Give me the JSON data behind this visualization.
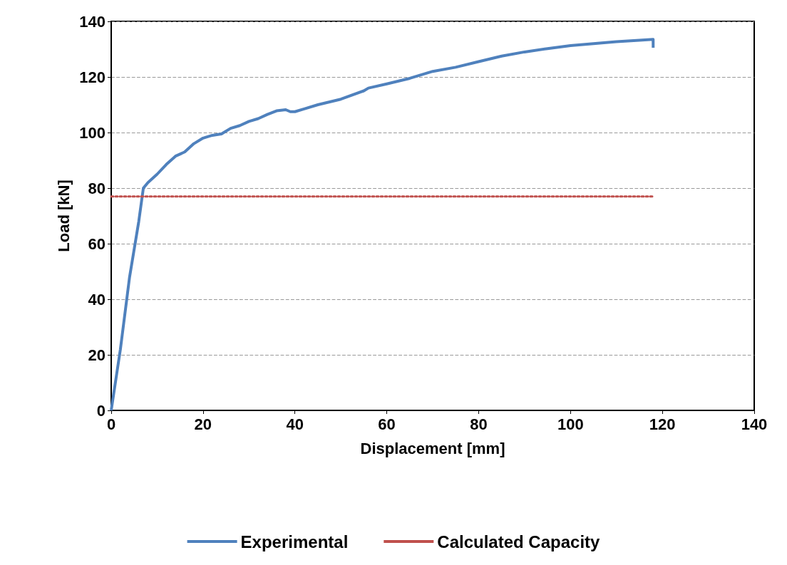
{
  "chart_data": {
    "type": "line",
    "xlabel": "Displacement [mm]",
    "ylabel": "Load [kN]",
    "xlim": [
      0,
      140
    ],
    "xticks": [
      0,
      20,
      40,
      60,
      80,
      100,
      120,
      140
    ],
    "ylim": [
      0,
      140
    ],
    "yticks": [
      0,
      20,
      40,
      60,
      80,
      100,
      120,
      140
    ],
    "grid": "y",
    "legend": "bottom",
    "marker": "none",
    "series": [
      {
        "name": "Experimental",
        "color": "#4f81bd",
        "line_style": "solid",
        "x": [
          0,
          2,
          4,
          6,
          7,
          8,
          10,
          12,
          14,
          16,
          18,
          20,
          22,
          24,
          26,
          28,
          30,
          32,
          34,
          36,
          38,
          39,
          40,
          42,
          45,
          50,
          55,
          56,
          60,
          65,
          70,
          75,
          80,
          85,
          90,
          95,
          100,
          105,
          110,
          115,
          118,
          118
        ],
        "values": [
          0,
          22,
          48,
          68,
          80,
          82,
          85,
          88.5,
          91.5,
          93,
          96,
          98,
          99,
          99.5,
          101.5,
          102.5,
          104,
          105,
          106.5,
          107.8,
          108.2,
          107.5,
          107.5,
          108.5,
          110,
          112,
          115,
          116,
          117.5,
          119.5,
          122,
          123.5,
          125.5,
          127.5,
          129,
          130.2,
          131.3,
          132,
          132.7,
          133.2,
          133.5,
          130.5
        ]
      },
      {
        "name": "Calculated Capacity",
        "color": "#c0504d",
        "line_style": "dotted",
        "x": [
          0,
          118
        ],
        "values": [
          77,
          77
        ]
      }
    ]
  }
}
